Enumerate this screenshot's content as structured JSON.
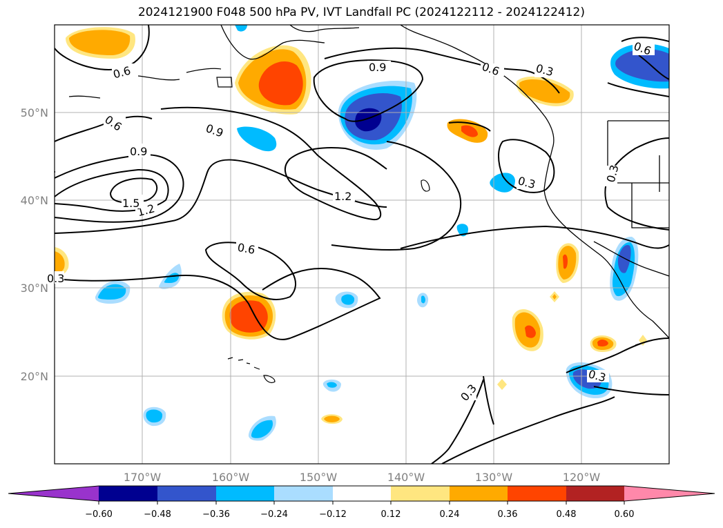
{
  "title": "2024121900 F048 500 hPa PV, IVT Landfall PC (2024122112 - 2024122412)",
  "map": {
    "lon_ticks": [
      "170°W",
      "160°W",
      "150°W",
      "140°W",
      "130°W",
      "120°W"
    ],
    "lat_ticks": [
      "50°N",
      "40°N",
      "30°N",
      "20°N"
    ],
    "contour_labels": [
      "0.6",
      "0.6",
      "0.9",
      "0.9",
      "1.2",
      "1.2",
      "1.5",
      "0.6",
      "0.3",
      "0.9",
      "0.6",
      "0.3",
      "0.3",
      "0.3",
      "0.6",
      "0.3",
      "0.3"
    ]
  },
  "colorbar": {
    "tick_labels": [
      "−0.60",
      "−0.48",
      "−0.36",
      "−0.24",
      "−0.12",
      "0.12",
      "0.24",
      "0.36",
      "0.48",
      "0.60"
    ],
    "colors": [
      "#9933cc",
      "#000090",
      "#3355cc",
      "#00bbff",
      "#aaddff",
      "#ffffff",
      "#ffe680",
      "#ffaa00",
      "#ff4400",
      "#b22222",
      "#ff88aa"
    ]
  }
}
